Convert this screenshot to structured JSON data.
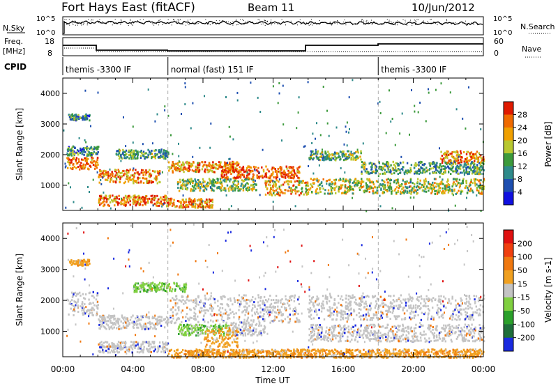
{
  "header": {
    "station": "Fort Hays East (fitACF)",
    "beam": "Beam 11",
    "date": "10/Jun/2012"
  },
  "noise_panel": {
    "left_label": "N.Sky",
    "right_label": "N.Search",
    "left_ticks": [
      "10^5",
      "10^0"
    ],
    "right_ticks": [
      "10^5",
      "10^0"
    ]
  },
  "freq_panel": {
    "left_label_1": "Freq.",
    "left_label_2": "[MHz]",
    "right_label": "Nave",
    "left_ticks": [
      "18",
      "8"
    ],
    "right_ticks": [
      "60",
      "0"
    ]
  },
  "cpid": {
    "label": "CPID",
    "segments": [
      {
        "start_h": 0,
        "end_h": 6,
        "name": "themis -3300 IF"
      },
      {
        "start_h": 6,
        "end_h": 18,
        "name": "normal (fast) 151 IF"
      },
      {
        "start_h": 18,
        "end_h": 24,
        "name": "themis -3300 IF"
      }
    ]
  },
  "x_axis": {
    "label": "Time UT",
    "ticks": [
      "00:00",
      "04:00",
      "08:00",
      "12:00",
      "16:00",
      "20:00",
      "00:00"
    ],
    "range_h": [
      0,
      24
    ]
  },
  "chart_data": [
    {
      "type": "heatmap",
      "panel": "power",
      "ylabel": "Slant Range [km]",
      "yticks": [
        1000,
        2000,
        3000,
        4000
      ],
      "ylim": [
        180,
        4500
      ],
      "xlim_hours": [
        0,
        24
      ],
      "colorbar_label": "Power [dB]",
      "colorbar_ticks": [
        "4",
        "8",
        "12",
        "16",
        "20",
        "24",
        "28"
      ],
      "colorbar_colors": [
        "#1010e0",
        "#1e4fb0",
        "#2e8a8a",
        "#3c9a3c",
        "#b8c830",
        "#f0a000",
        "#f06a00",
        "#e01a00"
      ],
      "bands": [
        {
          "h0": 0.2,
          "h1": 2.0,
          "r0": 1550,
          "r1": 1950,
          "level": 0.9
        },
        {
          "h0": 0.2,
          "h1": 2.0,
          "r0": 2000,
          "r1": 2300,
          "level": 0.45
        },
        {
          "h0": 0.3,
          "h1": 1.5,
          "r0": 3150,
          "r1": 3350,
          "level": 0.45
        },
        {
          "h0": 2.0,
          "h1": 5.5,
          "r0": 1100,
          "r1": 1550,
          "level": 0.85
        },
        {
          "h0": 2.0,
          "h1": 6.0,
          "r0": 350,
          "r1": 700,
          "level": 0.85
        },
        {
          "h0": 3.0,
          "h1": 6.0,
          "r0": 1900,
          "r1": 2200,
          "level": 0.5
        },
        {
          "h0": 6.0,
          "h1": 10.0,
          "r0": 1450,
          "r1": 1800,
          "level": 0.85
        },
        {
          "h0": 6.5,
          "h1": 11.0,
          "r0": 850,
          "r1": 1250,
          "level": 0.6
        },
        {
          "h0": 6.0,
          "h1": 8.5,
          "r0": 300,
          "r1": 600,
          "level": 0.85
        },
        {
          "h0": 9.0,
          "h1": 13.5,
          "r0": 1250,
          "r1": 1650,
          "level": 0.95
        },
        {
          "h0": 11.5,
          "h1": 14.0,
          "r0": 700,
          "r1": 1200,
          "level": 0.8
        },
        {
          "h0": 14.0,
          "h1": 17.0,
          "r0": 1850,
          "r1": 2150,
          "level": 0.55
        },
        {
          "h0": 14.0,
          "h1": 24.0,
          "r0": 750,
          "r1": 1250,
          "level": 0.65
        },
        {
          "h0": 17.0,
          "h1": 24.0,
          "r0": 1400,
          "r1": 1800,
          "level": 0.5
        },
        {
          "h0": 21.5,
          "h1": 24.0,
          "r0": 1750,
          "r1": 2150,
          "level": 0.85
        }
      ]
    },
    {
      "type": "heatmap",
      "panel": "velocity",
      "ylabel": "Slant Range [km]",
      "yticks": [
        1000,
        2000,
        3000,
        4000
      ],
      "ylim": [
        180,
        4500
      ],
      "xlim_hours": [
        0,
        24
      ],
      "colorbar_label": "Velocity [m s-1]",
      "colorbar_ticks": [
        "200",
        "100",
        "50",
        "15",
        "-15",
        "-50",
        "-100",
        "-200"
      ],
      "colorbar_colors": [
        "#1a2ae0",
        "#1e6e3a",
        "#2aa02a",
        "#80d040",
        "#c4c4c4",
        "#f0a020",
        "#f07810",
        "#f04010",
        "#e01010"
      ],
      "bands": [
        {
          "h0": 0.2,
          "h1": 2.0,
          "r0": 1550,
          "r1": 2300,
          "level": "grey"
        },
        {
          "h0": 2.0,
          "h1": 6.0,
          "r0": 1100,
          "r1": 1550,
          "level": "grey"
        },
        {
          "h0": 2.0,
          "h1": 6.0,
          "r0": 350,
          "r1": 700,
          "level": "grey"
        },
        {
          "h0": 6.0,
          "h1": 13.5,
          "r0": 1300,
          "r1": 2200,
          "level": "grey"
        },
        {
          "h0": 6.5,
          "h1": 9.5,
          "r0": 900,
          "r1": 1250,
          "level": "green"
        },
        {
          "h0": 9.5,
          "h1": 11.5,
          "r0": 900,
          "r1": 1300,
          "level": "grey"
        },
        {
          "h0": 8.0,
          "h1": 10.0,
          "r0": 500,
          "r1": 1150,
          "level": "orange"
        },
        {
          "h0": 4.0,
          "h1": 7.0,
          "r0": 2300,
          "r1": 2600,
          "level": "green"
        },
        {
          "h0": 6.0,
          "h1": 24.0,
          "r0": 180,
          "r1": 450,
          "level": "orange"
        },
        {
          "h0": 14.0,
          "h1": 24.0,
          "r0": 700,
          "r1": 1250,
          "level": "grey"
        },
        {
          "h0": 14.0,
          "h1": 24.0,
          "r0": 1400,
          "r1": 2200,
          "level": "grey"
        },
        {
          "h0": 0.3,
          "h1": 1.5,
          "r0": 3150,
          "r1": 3350,
          "level": "orange"
        }
      ]
    }
  ]
}
